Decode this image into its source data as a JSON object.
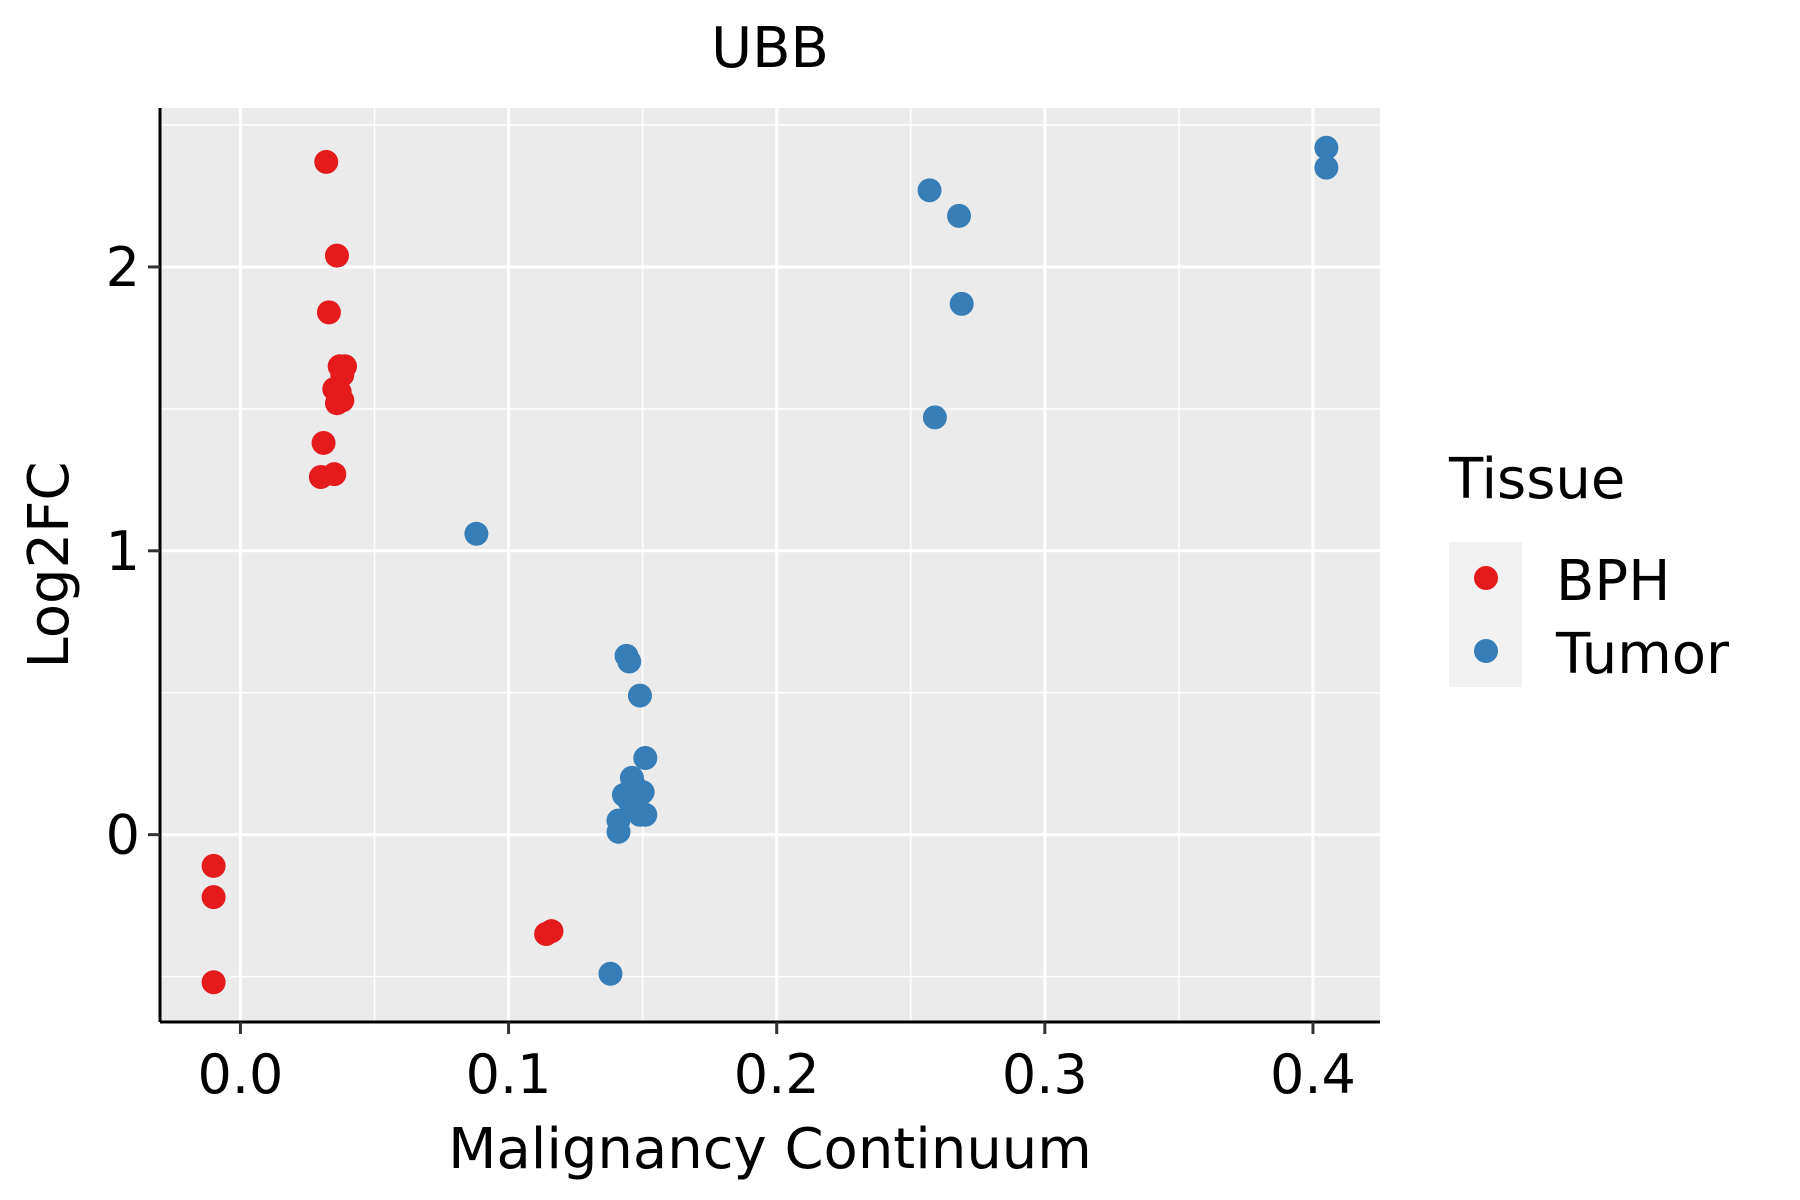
{
  "chart_data": {
    "type": "scatter",
    "title": "UBB",
    "xlabel": "Malignancy Continuum",
    "ylabel": "Log2FC",
    "xlim": [
      -0.03,
      0.425
    ],
    "ylim": [
      -0.66,
      2.56
    ],
    "x_ticks": [
      0.0,
      0.1,
      0.2,
      0.3,
      0.4
    ],
    "x_tick_labels": [
      "0.0",
      "0.1",
      "0.2",
      "0.3",
      "0.4"
    ],
    "y_ticks": [
      0,
      1,
      2
    ],
    "y_tick_labels": [
      "0",
      "1",
      "2"
    ],
    "grid": true,
    "legend": {
      "title": "Tissue",
      "position": "right"
    },
    "series": [
      {
        "name": "BPH",
        "color": "#E41A1C",
        "points": [
          [
            0.032,
            2.37
          ],
          [
            0.036,
            2.04
          ],
          [
            0.033,
            1.84
          ],
          [
            0.037,
            1.65
          ],
          [
            0.039,
            1.65
          ],
          [
            0.038,
            1.62
          ],
          [
            0.035,
            1.57
          ],
          [
            0.037,
            1.56
          ],
          [
            0.036,
            1.52
          ],
          [
            0.038,
            1.53
          ],
          [
            0.031,
            1.38
          ],
          [
            0.035,
            1.27
          ],
          [
            0.03,
            1.26
          ],
          [
            -0.01,
            -0.11
          ],
          [
            -0.01,
            -0.22
          ],
          [
            -0.01,
            -0.52
          ],
          [
            0.114,
            -0.35
          ],
          [
            0.116,
            -0.34
          ]
        ]
      },
      {
        "name": "Tumor",
        "color": "#377EB8",
        "points": [
          [
            0.405,
            2.42
          ],
          [
            0.405,
            2.35
          ],
          [
            0.257,
            2.27
          ],
          [
            0.268,
            2.18
          ],
          [
            0.269,
            1.87
          ],
          [
            0.259,
            1.47
          ],
          [
            0.088,
            1.06
          ],
          [
            0.144,
            0.63
          ],
          [
            0.145,
            0.61
          ],
          [
            0.149,
            0.49
          ],
          [
            0.151,
            0.27
          ],
          [
            0.146,
            0.2
          ],
          [
            0.147,
            0.17
          ],
          [
            0.148,
            0.14
          ],
          [
            0.15,
            0.15
          ],
          [
            0.143,
            0.14
          ],
          [
            0.145,
            0.12
          ],
          [
            0.148,
            0.1
          ],
          [
            0.149,
            0.07
          ],
          [
            0.151,
            0.07
          ],
          [
            0.141,
            0.05
          ],
          [
            0.141,
            0.01
          ],
          [
            0.138,
            -0.49
          ]
        ]
      }
    ]
  }
}
